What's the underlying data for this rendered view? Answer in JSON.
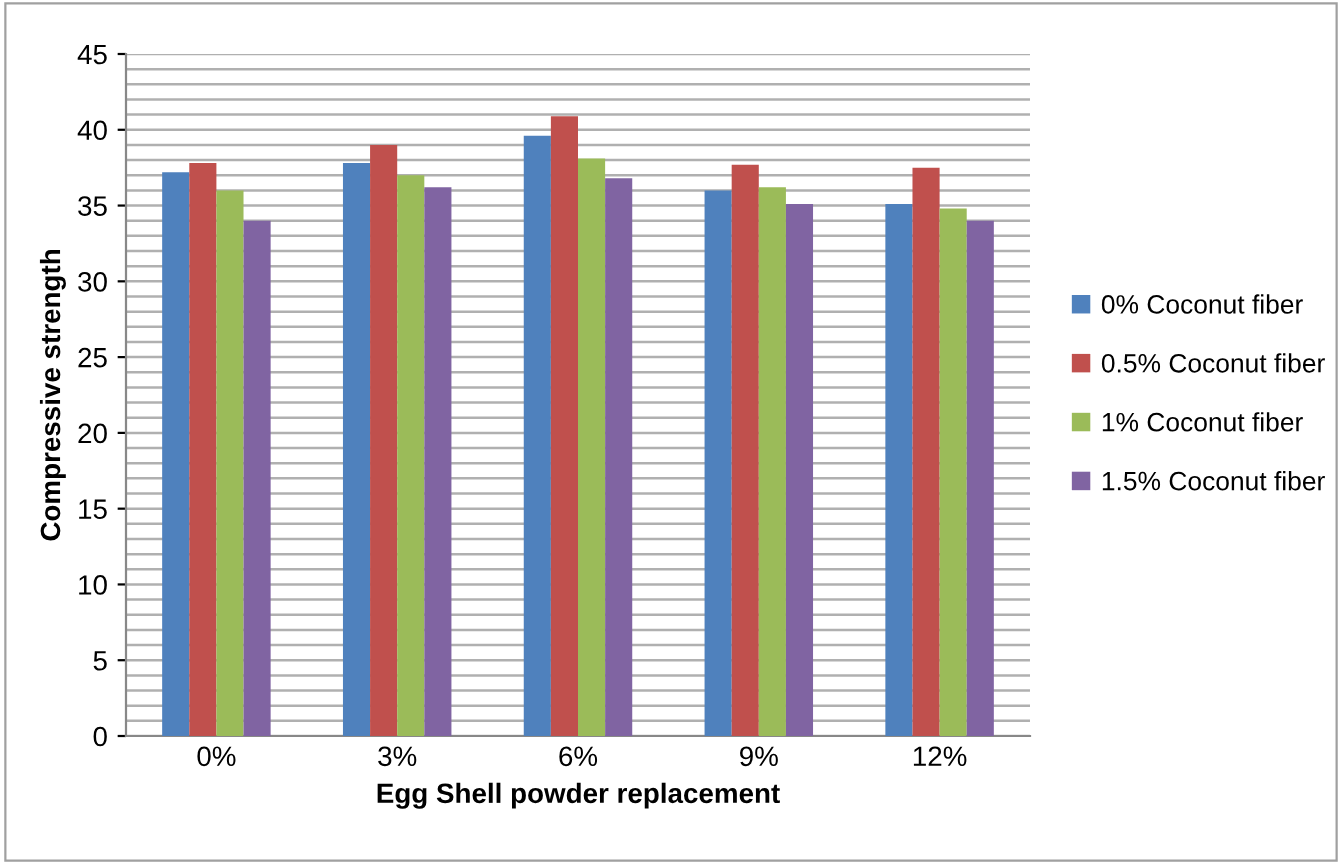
{
  "chart_data": {
    "type": "bar",
    "xlabel": "Egg Shell powder replacement",
    "ylabel": "Compressive strength",
    "categories": [
      "0%",
      "3%",
      "6%",
      "9%",
      "12%"
    ],
    "series": [
      {
        "name": "0% Coconut fiber",
        "color": "#4f81bd",
        "values": [
          37.2,
          37.8,
          39.6,
          36.0,
          35.1
        ]
      },
      {
        "name": "0.5% Coconut fiber",
        "color": "#c0504d",
        "values": [
          37.8,
          39.0,
          40.9,
          37.7,
          37.5
        ]
      },
      {
        "name": "1% Coconut fiber",
        "color": "#9bbb59",
        "values": [
          36.0,
          37.0,
          38.1,
          36.2,
          34.8
        ]
      },
      {
        "name": "1.5% Coconut fiber",
        "color": "#8064a2",
        "values": [
          34.0,
          36.2,
          36.8,
          35.1,
          34.0
        ]
      }
    ],
    "ylim": [
      0,
      45
    ],
    "yticks": [
      0,
      5,
      10,
      15,
      20,
      25,
      30,
      35,
      40,
      45
    ],
    "grid": "y",
    "legend": "right"
  }
}
